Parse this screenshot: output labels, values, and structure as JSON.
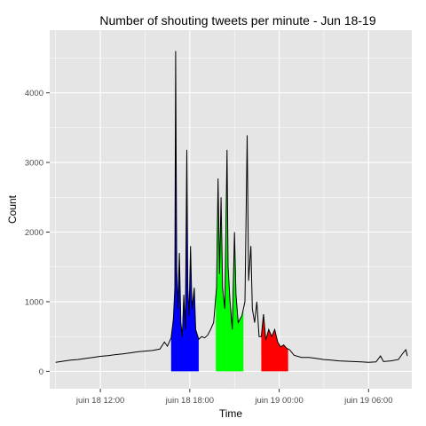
{
  "chart_data": {
    "type": "area",
    "title": "Number of shouting tweets per minute - Jun 18-19",
    "xlabel": "Time",
    "ylabel": "Count",
    "x_unit": "hour since Jun 18 00:00",
    "x_range": [
      8.6,
      32.9
    ],
    "ylim": [
      -250,
      4900
    ],
    "grid": true,
    "panel_background": "#e5e5e5",
    "grid_color": "#ffffff",
    "x_ticks": [
      {
        "value": 12,
        "label": "juin 18 12:00"
      },
      {
        "value": 18,
        "label": "juin 18 18:00"
      },
      {
        "value": 24,
        "label": "juin 19 00:00"
      },
      {
        "value": 30,
        "label": "juin 19 06:00"
      }
    ],
    "y_ticks": [
      0,
      1000,
      2000,
      3000,
      4000
    ],
    "series_color": "#000000",
    "highlighted_intervals": [
      {
        "start": 16.75,
        "end": 18.6,
        "color": "#0000ff"
      },
      {
        "start": 19.75,
        "end": 21.6,
        "color": "#00ff00"
      },
      {
        "start": 22.8,
        "end": 24.6,
        "color": "#ff0000"
      }
    ],
    "points": [
      [
        9.0,
        130
      ],
      [
        9.5,
        145
      ],
      [
        10.0,
        160
      ],
      [
        10.5,
        170
      ],
      [
        11.0,
        185
      ],
      [
        11.5,
        200
      ],
      [
        12.0,
        215
      ],
      [
        12.5,
        225
      ],
      [
        13.0,
        240
      ],
      [
        13.5,
        250
      ],
      [
        14.0,
        265
      ],
      [
        14.5,
        280
      ],
      [
        15.0,
        290
      ],
      [
        15.5,
        300
      ],
      [
        16.0,
        320
      ],
      [
        16.3,
        420
      ],
      [
        16.5,
        360
      ],
      [
        16.75,
        480
      ],
      [
        16.9,
        760
      ],
      [
        17.0,
        1200
      ],
      [
        17.05,
        4600
      ],
      [
        17.12,
        1500
      ],
      [
        17.2,
        900
      ],
      [
        17.3,
        1700
      ],
      [
        17.4,
        700
      ],
      [
        17.5,
        500
      ],
      [
        17.6,
        1100
      ],
      [
        17.7,
        600
      ],
      [
        17.8,
        3180
      ],
      [
        17.87,
        1200
      ],
      [
        17.95,
        800
      ],
      [
        18.05,
        1800
      ],
      [
        18.15,
        900
      ],
      [
        18.3,
        1200
      ],
      [
        18.4,
        600
      ],
      [
        18.6,
        460
      ],
      [
        18.8,
        500
      ],
      [
        19.0,
        480
      ],
      [
        19.2,
        520
      ],
      [
        19.4,
        600
      ],
      [
        19.6,
        700
      ],
      [
        19.8,
        1200
      ],
      [
        19.9,
        2770
      ],
      [
        20.0,
        1400
      ],
      [
        20.1,
        2500
      ],
      [
        20.2,
        1200
      ],
      [
        20.35,
        900
      ],
      [
        20.5,
        3180
      ],
      [
        20.57,
        1500
      ],
      [
        20.7,
        1000
      ],
      [
        20.85,
        600
      ],
      [
        21.0,
        2000
      ],
      [
        21.1,
        1100
      ],
      [
        21.25,
        700
      ],
      [
        21.5,
        800
      ],
      [
        21.7,
        1000
      ],
      [
        21.85,
        3390
      ],
      [
        21.95,
        1300
      ],
      [
        22.1,
        1800
      ],
      [
        22.2,
        900
      ],
      [
        22.35,
        700
      ],
      [
        22.5,
        1000
      ],
      [
        22.65,
        500
      ],
      [
        22.8,
        500
      ],
      [
        22.95,
        820
      ],
      [
        23.1,
        450
      ],
      [
        23.3,
        600
      ],
      [
        23.5,
        500
      ],
      [
        23.7,
        600
      ],
      [
        23.9,
        420
      ],
      [
        24.1,
        350
      ],
      [
        24.3,
        380
      ],
      [
        24.5,
        330
      ],
      [
        24.7,
        310
      ],
      [
        25.0,
        230
      ],
      [
        25.5,
        200
      ],
      [
        26.0,
        200
      ],
      [
        26.5,
        185
      ],
      [
        27.0,
        170
      ],
      [
        27.5,
        160
      ],
      [
        28.0,
        150
      ],
      [
        28.5,
        145
      ],
      [
        29.0,
        140
      ],
      [
        29.5,
        135
      ],
      [
        30.0,
        130
      ],
      [
        30.5,
        135
      ],
      [
        30.8,
        220
      ],
      [
        31.0,
        140
      ],
      [
        31.5,
        150
      ],
      [
        32.0,
        170
      ],
      [
        32.3,
        260
      ],
      [
        32.5,
        310
      ],
      [
        32.6,
        220
      ]
    ]
  }
}
